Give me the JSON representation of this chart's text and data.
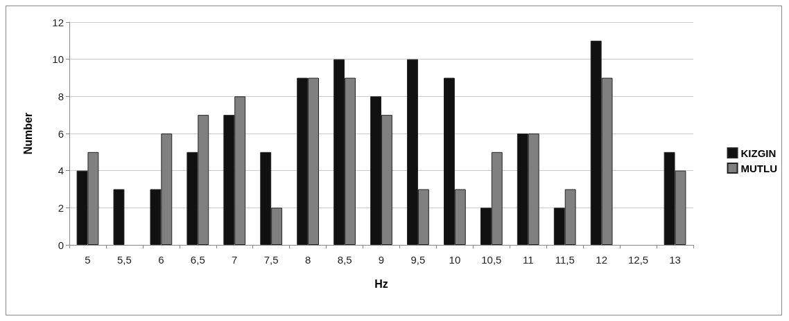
{
  "chart_data": {
    "type": "bar",
    "xlabel": "Hz",
    "ylabel": "Number",
    "categories": [
      "5",
      "5,5",
      "6",
      "6,5",
      "7",
      "7,5",
      "8",
      "8,5",
      "9",
      "9,5",
      "10",
      "10,5",
      "11",
      "11,5",
      "12",
      "12,5",
      "13"
    ],
    "series": [
      {
        "name": "KIZGIN",
        "color": "#111111",
        "values": [
          4,
          3,
          3,
          5,
          7,
          5,
          9,
          10,
          8,
          10,
          9,
          2,
          6,
          2,
          11,
          0,
          5
        ]
      },
      {
        "name": "MUTLU",
        "color": "#808080",
        "values": [
          5,
          0,
          6,
          7,
          8,
          2,
          9,
          9,
          7,
          3,
          3,
          5,
          6,
          3,
          9,
          0,
          4
        ]
      }
    ],
    "ylim": [
      0,
      12
    ],
    "yticks": [
      0,
      2,
      4,
      6,
      8,
      10,
      12
    ],
    "grid": "y",
    "legend": "right"
  }
}
